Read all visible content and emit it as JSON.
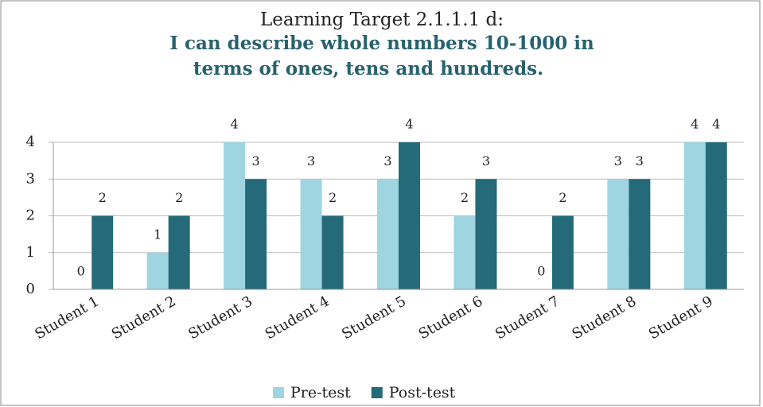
{
  "chart_data": {
    "type": "bar",
    "title": "Learning Target 2.1.1.1 d:",
    "subtitle": [
      "I can describe whole numbers 10-1000 in",
      "terms of ones, tens and hundreds."
    ],
    "categories": [
      "Student 1",
      "Student 2",
      "Student 3",
      "Student 4",
      "Student 5",
      "Student 6",
      "Student 7",
      "Student 8",
      "Student 9"
    ],
    "series": [
      {
        "name": "Pre-test",
        "color": "#9fd5e1",
        "values": [
          0,
          1,
          4,
          3,
          3,
          2,
          0,
          3,
          4
        ]
      },
      {
        "name": "Post-test",
        "color": "#256a79",
        "values": [
          2,
          2,
          3,
          2,
          4,
          3,
          2,
          3,
          4
        ]
      }
    ],
    "ylim": [
      0,
      4
    ],
    "yticks": [
      0,
      1,
      2,
      3,
      4
    ],
    "grid": true,
    "legend": "bottom"
  }
}
